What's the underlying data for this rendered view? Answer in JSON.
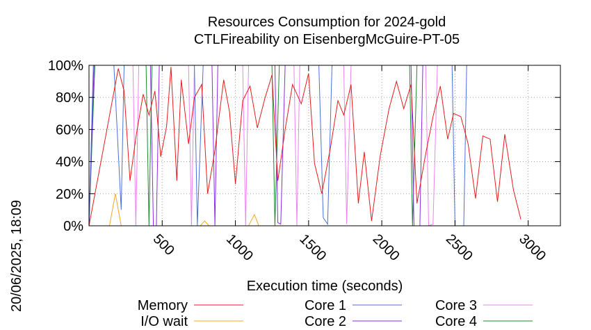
{
  "chart_data": {
    "type": "line",
    "title": "Resources Consumption for 2024-gold",
    "subtitle": "CTLFireability on EisenbergMcGuire-PT-05",
    "xlabel": "Execution time (seconds)",
    "ylabel": "",
    "side_label": "20/06/2025, 18:09",
    "xlim": [
      0,
      3220
    ],
    "ylim": [
      0,
      100
    ],
    "x_ticks": [
      500,
      1000,
      1500,
      2000,
      2500,
      3000
    ],
    "y_ticks": [
      "0%",
      "20%",
      "40%",
      "60%",
      "80%",
      "100%"
    ],
    "y_tick_values": [
      0,
      20,
      40,
      60,
      80,
      100
    ],
    "grid": true,
    "legend_placement": "bottom",
    "series": [
      {
        "name": "Memory",
        "color": "#e8191b",
        "points": [
          [
            0,
            0
          ],
          [
            200,
            98
          ],
          [
            240,
            84
          ],
          [
            280,
            28
          ],
          [
            320,
            55
          ],
          [
            370,
            82
          ],
          [
            410,
            69
          ],
          [
            450,
            84
          ],
          [
            490,
            43
          ],
          [
            530,
            62
          ],
          [
            560,
            99
          ],
          [
            600,
            28
          ],
          [
            630,
            91
          ],
          [
            680,
            51
          ],
          [
            720,
            80
          ],
          [
            770,
            88
          ],
          [
            810,
            20
          ],
          [
            860,
            47
          ],
          [
            920,
            91
          ],
          [
            960,
            71
          ],
          [
            1000,
            26
          ],
          [
            1050,
            78
          ],
          [
            1100,
            87
          ],
          [
            1150,
            61
          ],
          [
            1200,
            79
          ],
          [
            1250,
            94
          ],
          [
            1290,
            28
          ],
          [
            1340,
            60
          ],
          [
            1390,
            88
          ],
          [
            1450,
            76
          ],
          [
            1500,
            95
          ],
          [
            1540,
            39
          ],
          [
            1590,
            20
          ],
          [
            1650,
            49
          ],
          [
            1700,
            78
          ],
          [
            1740,
            69
          ],
          [
            1790,
            88
          ],
          [
            1840,
            14
          ],
          [
            1880,
            46
          ],
          [
            1930,
            3
          ],
          [
            1990,
            44
          ],
          [
            2050,
            73
          ],
          [
            2100,
            90
          ],
          [
            2150,
            73
          ],
          [
            2200,
            88
          ],
          [
            2240,
            14
          ],
          [
            2300,
            45
          ],
          [
            2350,
            68
          ],
          [
            2400,
            87
          ],
          [
            2450,
            54
          ],
          [
            2490,
            70
          ],
          [
            2540,
            68
          ],
          [
            2590,
            51
          ],
          [
            2640,
            17
          ],
          [
            2690,
            56
          ],
          [
            2740,
            54
          ],
          [
            2790,
            15
          ],
          [
            2840,
            57
          ],
          [
            2900,
            22
          ],
          [
            2950,
            4
          ]
        ]
      },
      {
        "name": "I/O wait",
        "color": "#f5a623",
        "points": [
          [
            0,
            0
          ],
          [
            140,
            0
          ],
          [
            180,
            20
          ],
          [
            220,
            0
          ],
          [
            760,
            0
          ],
          [
            790,
            3
          ],
          [
            820,
            0
          ],
          [
            1090,
            0
          ],
          [
            1130,
            7
          ],
          [
            1160,
            0
          ],
          [
            2950,
            0
          ]
        ]
      },
      {
        "name": "Core 1",
        "color": "#4a6fdb",
        "points": [
          [
            0,
            0
          ],
          [
            30,
            100
          ],
          [
            170,
            100
          ],
          [
            220,
            10
          ],
          [
            240,
            100
          ],
          [
            720,
            100
          ],
          [
            740,
            0
          ],
          [
            780,
            100
          ],
          [
            1570,
            100
          ],
          [
            1600,
            5
          ],
          [
            1630,
            1
          ],
          [
            1660,
            100
          ],
          [
            2480,
            100
          ],
          [
            2500,
            0
          ],
          [
            2560,
            0
          ],
          [
            2580,
            100
          ],
          [
            2950,
            100
          ]
        ]
      },
      {
        "name": "Core 2",
        "color": "#8a2be2",
        "points": [
          [
            0,
            0
          ],
          [
            35,
            100
          ],
          [
            420,
            100
          ],
          [
            440,
            0
          ],
          [
            460,
            0
          ],
          [
            480,
            100
          ],
          [
            840,
            100
          ],
          [
            860,
            0
          ],
          [
            880,
            100
          ],
          [
            1270,
            100
          ],
          [
            1290,
            2
          ],
          [
            1310,
            1
          ],
          [
            1340,
            100
          ],
          [
            2200,
            100
          ],
          [
            2220,
            0
          ],
          [
            2260,
            0
          ],
          [
            2280,
            100
          ],
          [
            2950,
            100
          ]
        ]
      },
      {
        "name": "Core 3",
        "color": "#ee82ee",
        "points": [
          [
            0,
            0
          ],
          [
            30,
            100
          ],
          [
            300,
            100
          ],
          [
            320,
            0
          ],
          [
            340,
            100
          ],
          [
            680,
            100
          ],
          [
            700,
            0
          ],
          [
            720,
            100
          ],
          [
            1050,
            100
          ],
          [
            1070,
            0
          ],
          [
            1090,
            100
          ],
          [
            1400,
            100
          ],
          [
            1420,
            0
          ],
          [
            1440,
            100
          ],
          [
            1740,
            100
          ],
          [
            1760,
            1
          ],
          [
            1790,
            100
          ],
          [
            2300,
            100
          ],
          [
            2320,
            0
          ],
          [
            2350,
            1
          ],
          [
            2380,
            100
          ],
          [
            2950,
            100
          ]
        ]
      },
      {
        "name": "Core 4",
        "color": "#1e8a2e",
        "points": [
          [
            0,
            0
          ],
          [
            40,
            100
          ],
          [
            390,
            100
          ],
          [
            410,
            0
          ],
          [
            430,
            100
          ],
          [
            1250,
            100
          ],
          [
            1270,
            0
          ],
          [
            1300,
            100
          ],
          [
            2190,
            100
          ],
          [
            2210,
            0
          ],
          [
            2240,
            100
          ],
          [
            2950,
            100
          ]
        ]
      }
    ]
  }
}
